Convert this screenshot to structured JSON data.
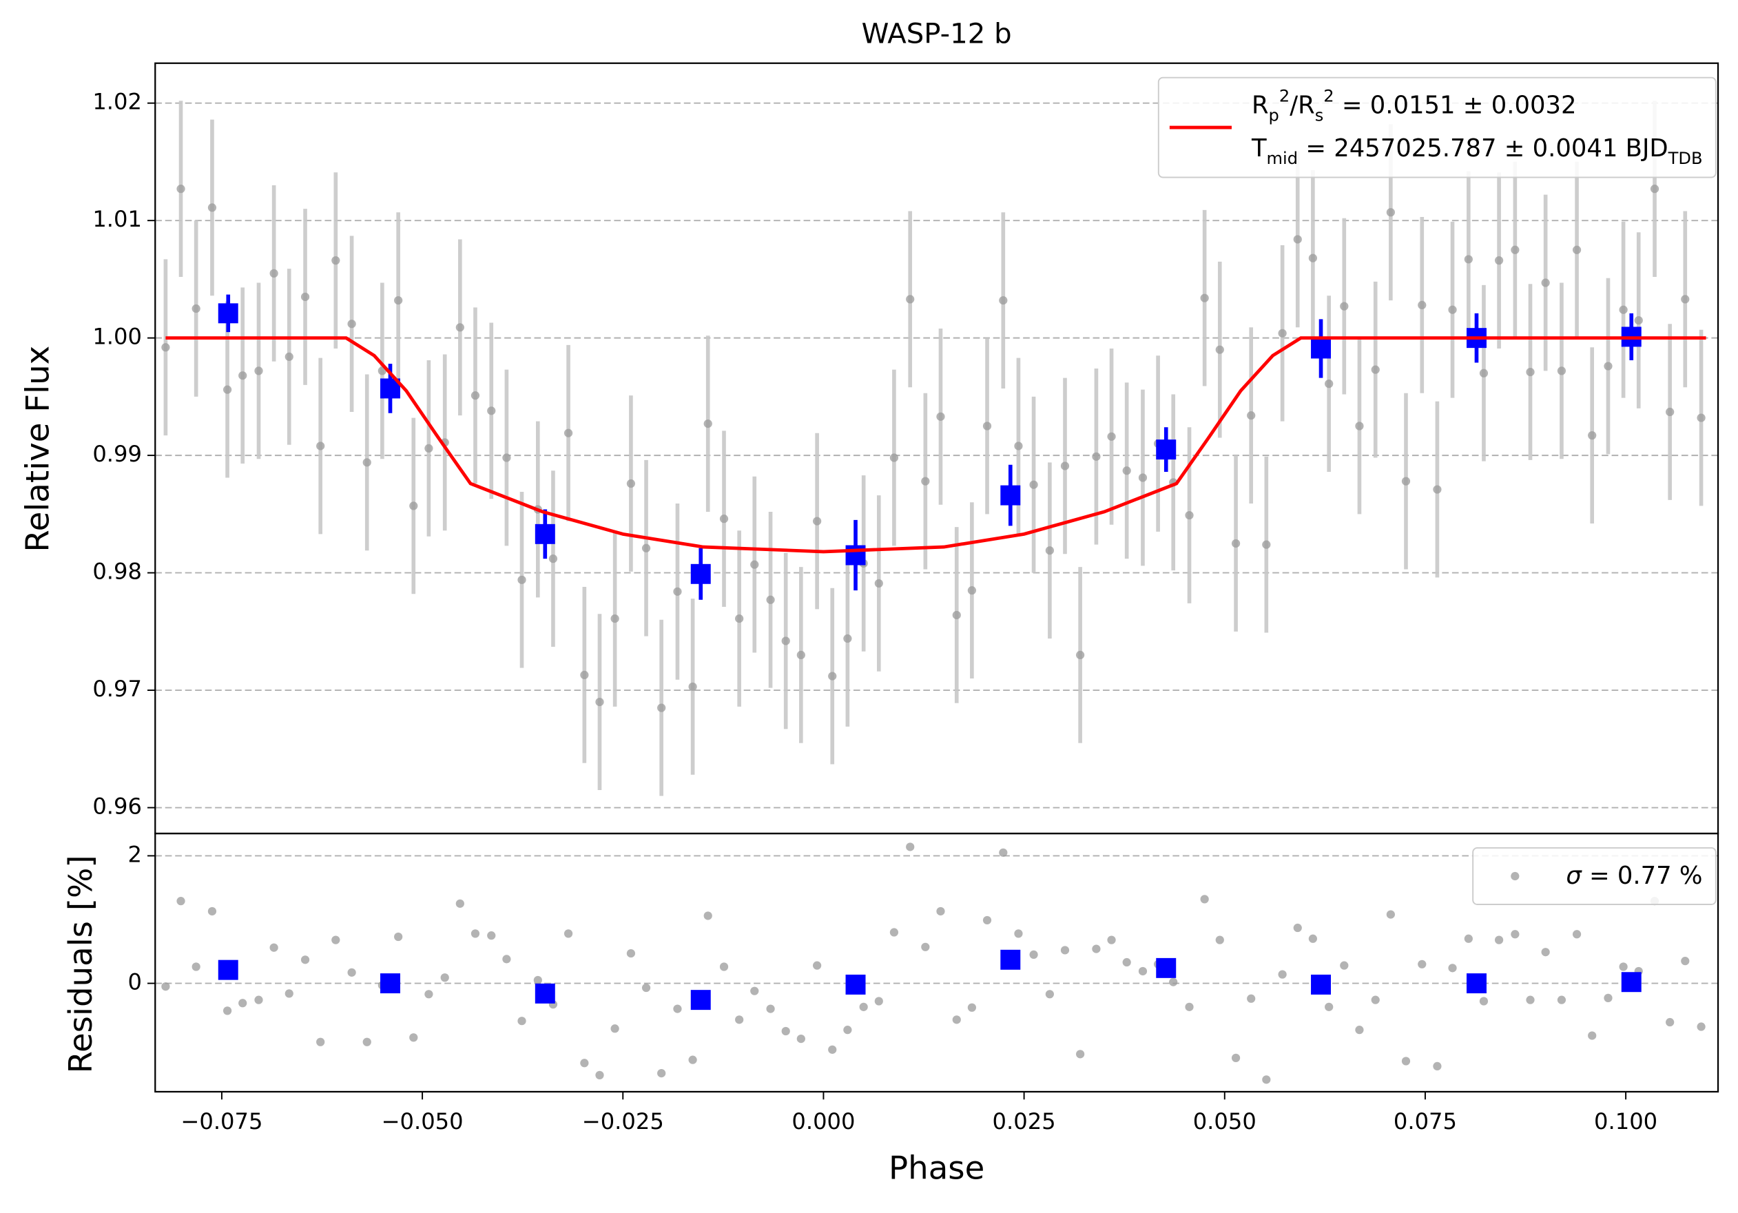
{
  "chart_data": [
    {
      "type": "scatter",
      "title": "WASP-12 b",
      "ylabel": "Relative Flux",
      "xlim": [
        -0.0833,
        0.1115
      ],
      "ylim": [
        0.9578,
        1.0234
      ],
      "yticks": [
        0.96,
        0.97,
        0.98,
        0.99,
        {
          "value": 1.0,
          "label": "1.00"
        },
        1.01,
        1.02
      ],
      "grid": true,
      "legend": "upper right",
      "series": [
        {
          "marker": "circle",
          "color": "#999999",
          "error_color": "#c8c8c8",
          "yerr": 0.0075,
          "x": [
            -0.082,
            -0.0801,
            -0.0782,
            -0.0762,
            -0.0743,
            -0.0724,
            -0.0704,
            -0.0685,
            -0.0666,
            -0.0646,
            -0.0627,
            -0.0608,
            -0.0588,
            -0.0569,
            -0.055,
            -0.053,
            -0.0511,
            -0.0492,
            -0.0472,
            -0.0453,
            -0.0434,
            -0.0414,
            -0.0395,
            -0.0376,
            -0.0356,
            -0.0337,
            -0.0318,
            -0.0298,
            -0.0279,
            -0.026,
            -0.024,
            -0.0221,
            -0.0202,
            -0.0182,
            -0.0163,
            -0.0144,
            -0.0124,
            -0.0105,
            -0.0086,
            -0.0066,
            -0.0047,
            -0.0028,
            -0.0008,
            0.0011,
            0.003,
            0.005,
            0.0069,
            0.0088,
            0.0108,
            0.0127,
            0.0146,
            0.0166,
            0.0185,
            0.0204,
            0.0224,
            0.0243,
            0.0262,
            0.0282,
            0.0301,
            0.032,
            0.034,
            0.0359,
            0.0378,
            0.0398,
            0.0417,
            0.0436,
            0.0456,
            0.0475,
            0.0494,
            0.0514,
            0.0533,
            0.0552,
            0.0572,
            0.0591,
            0.061,
            0.063,
            0.0649,
            0.0668,
            0.0688,
            0.0707,
            0.0726,
            0.0746,
            0.0765,
            0.0784,
            0.0804,
            0.0823,
            0.0842,
            0.0862,
            0.0881,
            0.09,
            0.092,
            0.0939,
            0.0958,
            0.0978,
            0.0997,
            0.1016,
            0.1036,
            0.1055,
            0.1074,
            0.1094
          ],
          "values": [
            0.9992,
            1.0127,
            1.0025,
            1.0111,
            0.9956,
            0.9968,
            0.9972,
            1.0055,
            0.9984,
            1.0035,
            0.9908,
            1.0066,
            1.0012,
            0.9894,
            0.9972,
            1.0032,
            0.9857,
            0.9906,
            0.9911,
            1.0009,
            0.9951,
            0.9938,
            0.9898,
            0.9794,
            0.9854,
            0.9812,
            0.9919,
            0.9713,
            0.969,
            0.9761,
            0.9876,
            0.9821,
            0.9685,
            0.9784,
            0.9703,
            0.9927,
            0.9846,
            0.9761,
            0.9807,
            0.9777,
            0.9742,
            0.973,
            0.9844,
            0.9712,
            0.9744,
            0.9808,
            0.9791,
            0.9898,
            1.0033,
            0.9878,
            0.9933,
            0.9764,
            0.9785,
            0.9925,
            1.0032,
            0.9908,
            0.9875,
            0.9819,
            0.9891,
            0.973,
            0.9899,
            0.9916,
            0.9887,
            0.9881,
            0.991,
            0.9877,
            0.9849,
            1.0034,
            0.999,
            0.9825,
            0.9934,
            0.9824,
            1.0004,
            1.0084,
            1.0068,
            0.9961,
            1.0027,
            0.9925,
            0.9973,
            1.0107,
            0.9878,
            1.0028,
            0.9871,
            1.0024,
            1.0067,
            0.997,
            1.0066,
            1.0075,
            0.9971,
            1.0047,
            0.9972,
            1.0075,
            0.9917,
            0.9976,
            1.0024,
            1.0015,
            1.0127,
            0.9937,
            1.0033,
            0.9932
          ]
        },
        {
          "marker": "square",
          "color": "#0000ff",
          "error_color": "#0000ff",
          "x": [
            -0.0742,
            -0.054,
            -0.0347,
            -0.0153,
            0.004,
            0.0233,
            0.0427,
            0.062,
            0.0814,
            0.1007
          ],
          "values": [
            1.0021,
            0.9957,
            0.9833,
            0.9799,
            0.9815,
            0.9866,
            0.9905,
            0.9991,
            1.0,
            1.0001
          ],
          "yerr": [
            0.0016,
            0.0021,
            0.0021,
            0.0022,
            0.003,
            0.0026,
            0.0019,
            0.0025,
            0.0021,
            0.002
          ]
        },
        {
          "marker": "line",
          "color": "#ff0000",
          "name": [
            {
              "text": "R"
            },
            {
              "text": "p",
              "shift": "sub"
            },
            {
              "text": "2",
              "shift": "super"
            },
            {
              "text": "/R"
            },
            {
              "text": "s",
              "shift": "sub"
            },
            {
              "text": "2",
              "shift": "super"
            },
            {
              "text": " = 0.0151 ± 0.0032"
            }
          ],
          "name2": [
            {
              "text": "T"
            },
            {
              "text": "mid",
              "shift": "sub"
            },
            {
              "text": " = 2457025.787 ± 0.0041 BJD"
            },
            {
              "text": "TDB",
              "shift": "sub"
            }
          ],
          "x": [
            -0.082,
            -0.0595,
            -0.056,
            -0.052,
            -0.048,
            -0.044,
            -0.035,
            -0.025,
            -0.015,
            0,
            0.015,
            0.025,
            0.035,
            0.044,
            0.048,
            0.052,
            0.056,
            0.0595,
            0.11
          ],
          "values": [
            1,
            1,
            0.9985,
            0.9955,
            0.9915,
            0.9876,
            0.9852,
            0.9833,
            0.9822,
            0.9818,
            0.9822,
            0.9833,
            0.9852,
            0.9876,
            0.9915,
            0.9955,
            0.9985,
            1,
            1
          ]
        }
      ]
    },
    {
      "type": "scatter",
      "xlabel": "Phase",
      "ylabel": "Residuals [%]",
      "xlim": [
        -0.0833,
        0.1115
      ],
      "ylim": [
        -1.7,
        2.35
      ],
      "xticks": [
        {
          "value": -0.075,
          "label": "−0.075"
        },
        {
          "value": -0.05,
          "label": "−0.050"
        },
        {
          "value": -0.025,
          "label": "−0.025"
        },
        {
          "value": 0,
          "label": "0.000"
        },
        0.025,
        {
          "value": 0.05,
          "label": "0.050"
        },
        0.075,
        {
          "value": 0.1,
          "label": "0.100"
        }
      ],
      "yticks": [
        0,
        2
      ],
      "grid": true,
      "legend": "upper right",
      "series": [
        {
          "marker": "circle",
          "color": "#999999",
          "name": [
            {
              "text": "σ",
              "style": "italic"
            },
            {
              "text": " = 0.77 %"
            }
          ],
          "x": [
            -0.082,
            -0.0801,
            -0.0782,
            -0.0762,
            -0.0743,
            -0.0724,
            -0.0704,
            -0.0685,
            -0.0666,
            -0.0646,
            -0.0627,
            -0.0608,
            -0.0588,
            -0.0569,
            -0.055,
            -0.053,
            -0.0511,
            -0.0492,
            -0.0472,
            -0.0453,
            -0.0434,
            -0.0414,
            -0.0395,
            -0.0376,
            -0.0356,
            -0.0337,
            -0.0318,
            -0.0298,
            -0.0279,
            -0.026,
            -0.024,
            -0.0221,
            -0.0202,
            -0.0182,
            -0.0163,
            -0.0144,
            -0.0124,
            -0.0105,
            -0.0086,
            -0.0066,
            -0.0047,
            -0.0028,
            -0.0008,
            0.0011,
            0.003,
            0.005,
            0.0069,
            0.0088,
            0.0108,
            0.0127,
            0.0146,
            0.0166,
            0.0185,
            0.0204,
            0.0224,
            0.0243,
            0.0262,
            0.0282,
            0.0301,
            0.032,
            0.034,
            0.0359,
            0.0378,
            0.0398,
            0.0417,
            0.0436,
            0.0456,
            0.0475,
            0.0494,
            0.0514,
            0.0533,
            0.0552,
            0.0572,
            0.0591,
            0.061,
            0.063,
            0.0649,
            0.0668,
            0.0688,
            0.0707,
            0.0726,
            0.0746,
            0.0765,
            0.0784,
            0.0804,
            0.0823,
            0.0842,
            0.0862,
            0.0881,
            0.09,
            0.092,
            0.0939,
            0.0958,
            0.0978,
            0.0997,
            0.1016,
            0.1036,
            0.1055,
            0.1074,
            0.1094
          ],
          "values": [
            -0.05,
            1.29,
            0.26,
            1.13,
            -0.43,
            -0.31,
            -0.26,
            0.56,
            -0.16,
            0.37,
            -0.92,
            0.68,
            0.17,
            -0.92,
            -0.03,
            0.73,
            -0.85,
            -0.17,
            0.09,
            1.25,
            0.78,
            0.75,
            0.38,
            -0.59,
            0.05,
            -0.33,
            0.78,
            -1.25,
            -1.44,
            -0.71,
            0.47,
            -0.07,
            -1.41,
            -0.4,
            -1.2,
            1.06,
            0.26,
            -0.57,
            -0.12,
            -0.4,
            -0.75,
            -0.87,
            0.28,
            -1.04,
            -0.73,
            -0.37,
            -0.28,
            0.8,
            2.14,
            0.57,
            1.13,
            -0.57,
            -0.38,
            0.99,
            2.05,
            0.78,
            0.45,
            -0.17,
            0.52,
            -1.11,
            0.54,
            0.68,
            0.33,
            0.19,
            0.3,
            0.02,
            -0.37,
            1.32,
            0.68,
            -1.17,
            -0.24,
            -1.51,
            0.14,
            0.87,
            0.7,
            -0.37,
            0.28,
            -0.73,
            -0.26,
            1.08,
            -1.22,
            0.3,
            -1.3,
            0.24,
            0.7,
            -0.28,
            0.68,
            0.77,
            -0.26,
            0.49,
            -0.26,
            0.77,
            -0.82,
            -0.23,
            0.26,
            0.19,
            1.29,
            -0.61,
            0.35,
            -0.68
          ]
        },
        {
          "marker": "square",
          "color": "#0000ff",
          "x": [
            -0.0742,
            -0.054,
            -0.0347,
            -0.0153,
            0.004,
            0.0233,
            0.0427,
            0.062,
            0.0814,
            0.1007
          ],
          "values": [
            0.21,
            0.0,
            -0.16,
            -0.26,
            -0.02,
            0.37,
            0.24,
            -0.02,
            0.0,
            0.02
          ]
        }
      ]
    }
  ]
}
